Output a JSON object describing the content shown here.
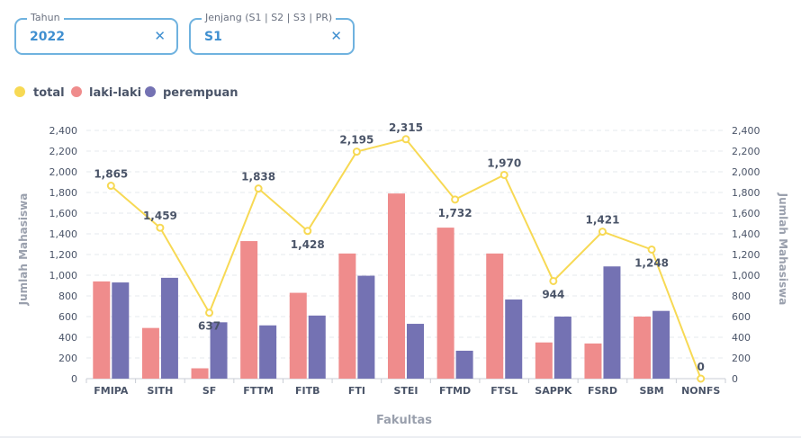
{
  "filters": {
    "tahun": {
      "label": "Tahun",
      "value": "2022"
    },
    "jenjang": {
      "label": "Jenjang (S1 | S2 | S3 | PR)",
      "value": "S1"
    },
    "clear_glyph": "✕"
  },
  "colors": {
    "total": "#f7d954",
    "laki": "#ef8c8c",
    "perempuan": "#7472b3",
    "text": "#4a5468",
    "axis": "#9aa0ad",
    "filter_border": "#6fb2df",
    "filter_text": "#3f8fd0"
  },
  "chart_data": {
    "type": "bar",
    "xlabel": "Fakultas",
    "ylabel": "Jumlah Mahasiswa",
    "ylim": [
      0,
      2400
    ],
    "ytick_step": 200,
    "grid": true,
    "legend_position": "top-left",
    "categories": [
      "FMIPA",
      "SITH",
      "SF",
      "FTTM",
      "FITB",
      "FTI",
      "STEI",
      "FTMD",
      "FTSL",
      "SAPPK",
      "FSRD",
      "SBM",
      "NONFS"
    ],
    "series": [
      {
        "name": "total",
        "type": "line",
        "values": [
          1865,
          1459,
          637,
          1838,
          1428,
          2195,
          2315,
          1732,
          1970,
          944,
          1421,
          1248,
          0
        ],
        "labels": [
          "1,865",
          "1,459",
          "637",
          "1,838",
          "1,428",
          "2,195",
          "2,315",
          "1,732",
          "1,970",
          "944",
          "1,421",
          "1,248",
          "0"
        ]
      },
      {
        "name": "laki-laki",
        "type": "bar",
        "values": [
          940,
          490,
          100,
          1330,
          830,
          1210,
          1790,
          1460,
          1210,
          350,
          340,
          600,
          0
        ]
      },
      {
        "name": "perempuan",
        "type": "bar",
        "values": [
          930,
          975,
          545,
          515,
          610,
          995,
          530,
          270,
          765,
          600,
          1085,
          655,
          0
        ]
      }
    ]
  }
}
